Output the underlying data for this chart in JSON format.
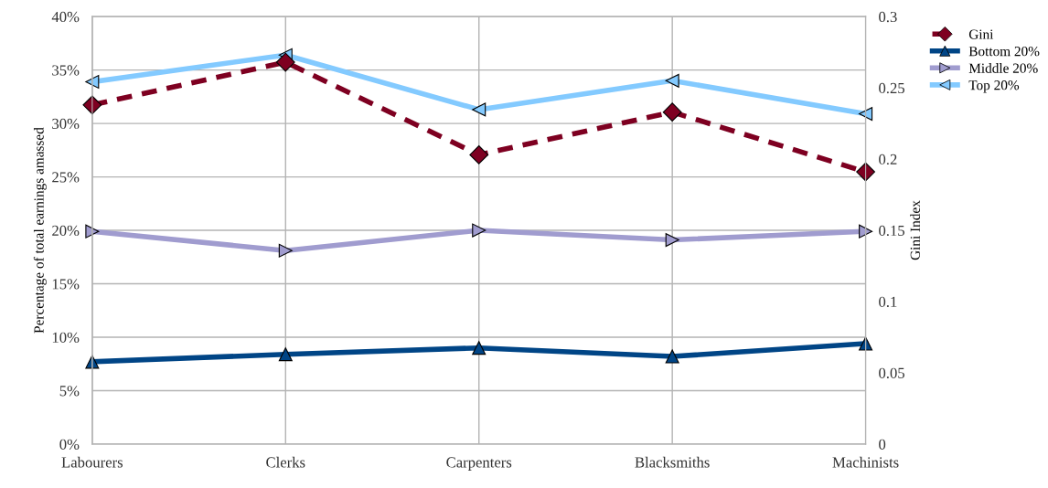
{
  "chart_data": {
    "type": "line",
    "categories": [
      "Labourers",
      "Clerks",
      "Carpenters",
      "Blacksmiths",
      "Machinists"
    ],
    "ylabel": "Percentage of total earnings amassed",
    "y2label": "Gini Index",
    "ylim": [
      0,
      40
    ],
    "yticks": [
      {
        "value": 0,
        "label": "0%"
      },
      {
        "value": 5,
        "label": "5%"
      },
      {
        "value": 10,
        "label": "10%"
      },
      {
        "value": 15,
        "label": "15%"
      },
      {
        "value": 20,
        "label": "20%"
      },
      {
        "value": 25,
        "label": "25%"
      },
      {
        "value": 30,
        "label": "30%"
      },
      {
        "value": 35,
        "label": "35%"
      },
      {
        "value": 40,
        "label": "40%"
      }
    ],
    "y2lim": [
      0,
      0.3
    ],
    "y2ticks": [
      0,
      0.05,
      0.1,
      0.15,
      0.2,
      0.25,
      0.3
    ],
    "grid": true,
    "legend": "right",
    "series": [
      {
        "name": "Gini",
        "color": "#7e0021",
        "axis": "y2",
        "marker": "diamond",
        "line_style": "dashed",
        "values": [
          0.238,
          0.268,
          0.203,
          0.233,
          0.191
        ]
      },
      {
        "name": "Bottom 20%",
        "color": "#004586",
        "marker": "triangle",
        "line_style": "solid",
        "values": [
          7.7,
          8.4,
          9.0,
          8.2,
          9.4
        ]
      },
      {
        "name": "Middle 20%",
        "color": "#a09ccf",
        "marker": "triangle-right",
        "line_style": "solid",
        "values": [
          19.9,
          18.1,
          20.0,
          19.1,
          19.9
        ]
      },
      {
        "name": "Top 20%",
        "color": "#83caff",
        "marker": "triangle-left",
        "line_style": "solid",
        "values": [
          33.9,
          36.4,
          31.3,
          34.0,
          30.9
        ]
      }
    ]
  }
}
